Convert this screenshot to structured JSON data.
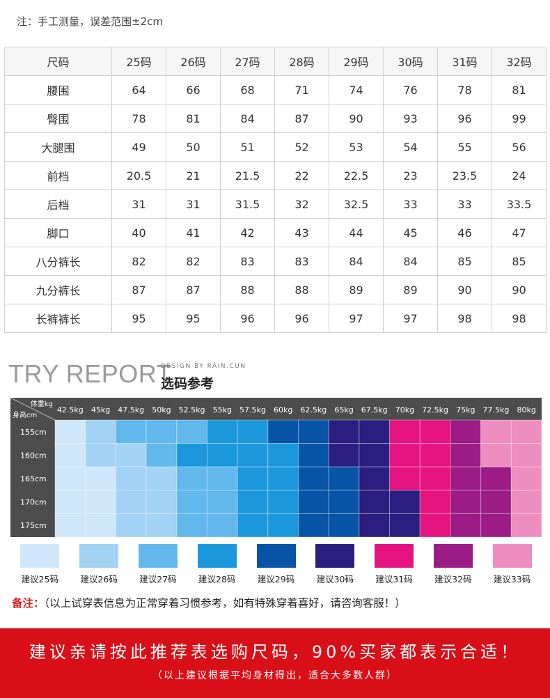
{
  "note": "注：手工测量，误差范围±2cm",
  "size_table": {
    "header": [
      "尺码",
      "25码",
      "26码",
      "27码",
      "28码",
      "29码",
      "30码",
      "31码",
      "32码"
    ],
    "rows": [
      {
        "label": "腰围",
        "values": [
          "64",
          "66",
          "68",
          "71",
          "74",
          "76",
          "78",
          "81"
        ]
      },
      {
        "label": "臀围",
        "values": [
          "78",
          "81",
          "84",
          "87",
          "90",
          "93",
          "96",
          "99"
        ]
      },
      {
        "label": "大腿围",
        "values": [
          "49",
          "50",
          "51",
          "52",
          "53",
          "54",
          "55",
          "56"
        ]
      },
      {
        "label": "前档",
        "values": [
          "20.5",
          "21",
          "21.5",
          "22",
          "22.5",
          "23",
          "23.5",
          "24"
        ]
      },
      {
        "label": "后档",
        "values": [
          "31",
          "31",
          "31.5",
          "32",
          "32.5",
          "33",
          "33",
          "33.5"
        ]
      },
      {
        "label": "脚口",
        "values": [
          "40",
          "41",
          "42",
          "43",
          "44",
          "45",
          "46",
          "47"
        ]
      },
      {
        "label": "八分裤长",
        "values": [
          "82",
          "82",
          "83",
          "83",
          "84",
          "84",
          "85",
          "85"
        ]
      },
      {
        "label": "九分裤长",
        "values": [
          "87",
          "87",
          "88",
          "88",
          "89",
          "89",
          "90",
          "90"
        ]
      },
      {
        "label": "长裤裤长",
        "values": [
          "95",
          "95",
          "96",
          "96",
          "97",
          "97",
          "98",
          "98"
        ]
      }
    ]
  },
  "try_report": {
    "title": "TRY REPORT",
    "design_by": "DESIGN BY RAIN.CUN",
    "subtitle": "选码参考"
  },
  "chart_data": {
    "type": "heatmap",
    "corner_top": "体重kg",
    "corner_bottom": "身高cm",
    "x": [
      "42.5kg",
      "45kg",
      "47.5kg",
      "50kg",
      "52.5kg",
      "55kg",
      "57.5kg",
      "60kg",
      "62.5kg",
      "65kg",
      "67.5kg",
      "70kg",
      "72.5kg",
      "75kg",
      "77.5kg",
      "80kg"
    ],
    "y": [
      "155cm",
      "160cm",
      "165cm",
      "170cm",
      "175cm"
    ],
    "cells": [
      [
        25,
        26,
        27,
        27,
        27,
        28,
        28,
        29,
        29,
        30,
        30,
        31,
        31,
        32,
        33,
        33
      ],
      [
        25,
        26,
        26,
        27,
        28,
        28,
        28,
        28,
        29,
        30,
        30,
        31,
        31,
        32,
        33,
        33
      ],
      [
        25,
        25,
        26,
        26,
        27,
        27,
        28,
        28,
        29,
        29,
        30,
        31,
        31,
        32,
        32,
        33
      ],
      [
        25,
        25,
        26,
        26,
        27,
        27,
        28,
        28,
        29,
        29,
        30,
        30,
        31,
        32,
        32,
        33
      ],
      [
        25,
        25,
        26,
        26,
        27,
        27,
        28,
        28,
        29,
        29,
        30,
        30,
        31,
        32,
        32,
        33
      ]
    ],
    "legend": [
      {
        "size": 25,
        "label": "建议25码",
        "color": "#cfe7fb"
      },
      {
        "size": 26,
        "label": "建议26码",
        "color": "#a2d2f4"
      },
      {
        "size": 27,
        "label": "建议27码",
        "color": "#62b8ec"
      },
      {
        "size": 28,
        "label": "建议28码",
        "color": "#1b98dc"
      },
      {
        "size": 29,
        "label": "建议29码",
        "color": "#0854a6"
      },
      {
        "size": 30,
        "label": "建议30码",
        "color": "#2b1e80"
      },
      {
        "size": 31,
        "label": "建议31码",
        "color": "#e5137f"
      },
      {
        "size": 32,
        "label": "建议32码",
        "color": "#9c1c86"
      },
      {
        "size": 33,
        "label": "建议33码",
        "color": "#ee8dbf"
      }
    ],
    "header_color": "#4d4d4d"
  },
  "remark": {
    "key": "备注：",
    "text": "（以上试穿表信息为正常穿着习惯参考，如有特殊穿着喜好，请咨询客服！）"
  },
  "banner": {
    "main": "建议亲请按此推荐表选购尺码，90%买家都表示合适！",
    "sub": "（以上建议根据平均身材得出，适合大多数人群）",
    "color": "#d90f18"
  }
}
